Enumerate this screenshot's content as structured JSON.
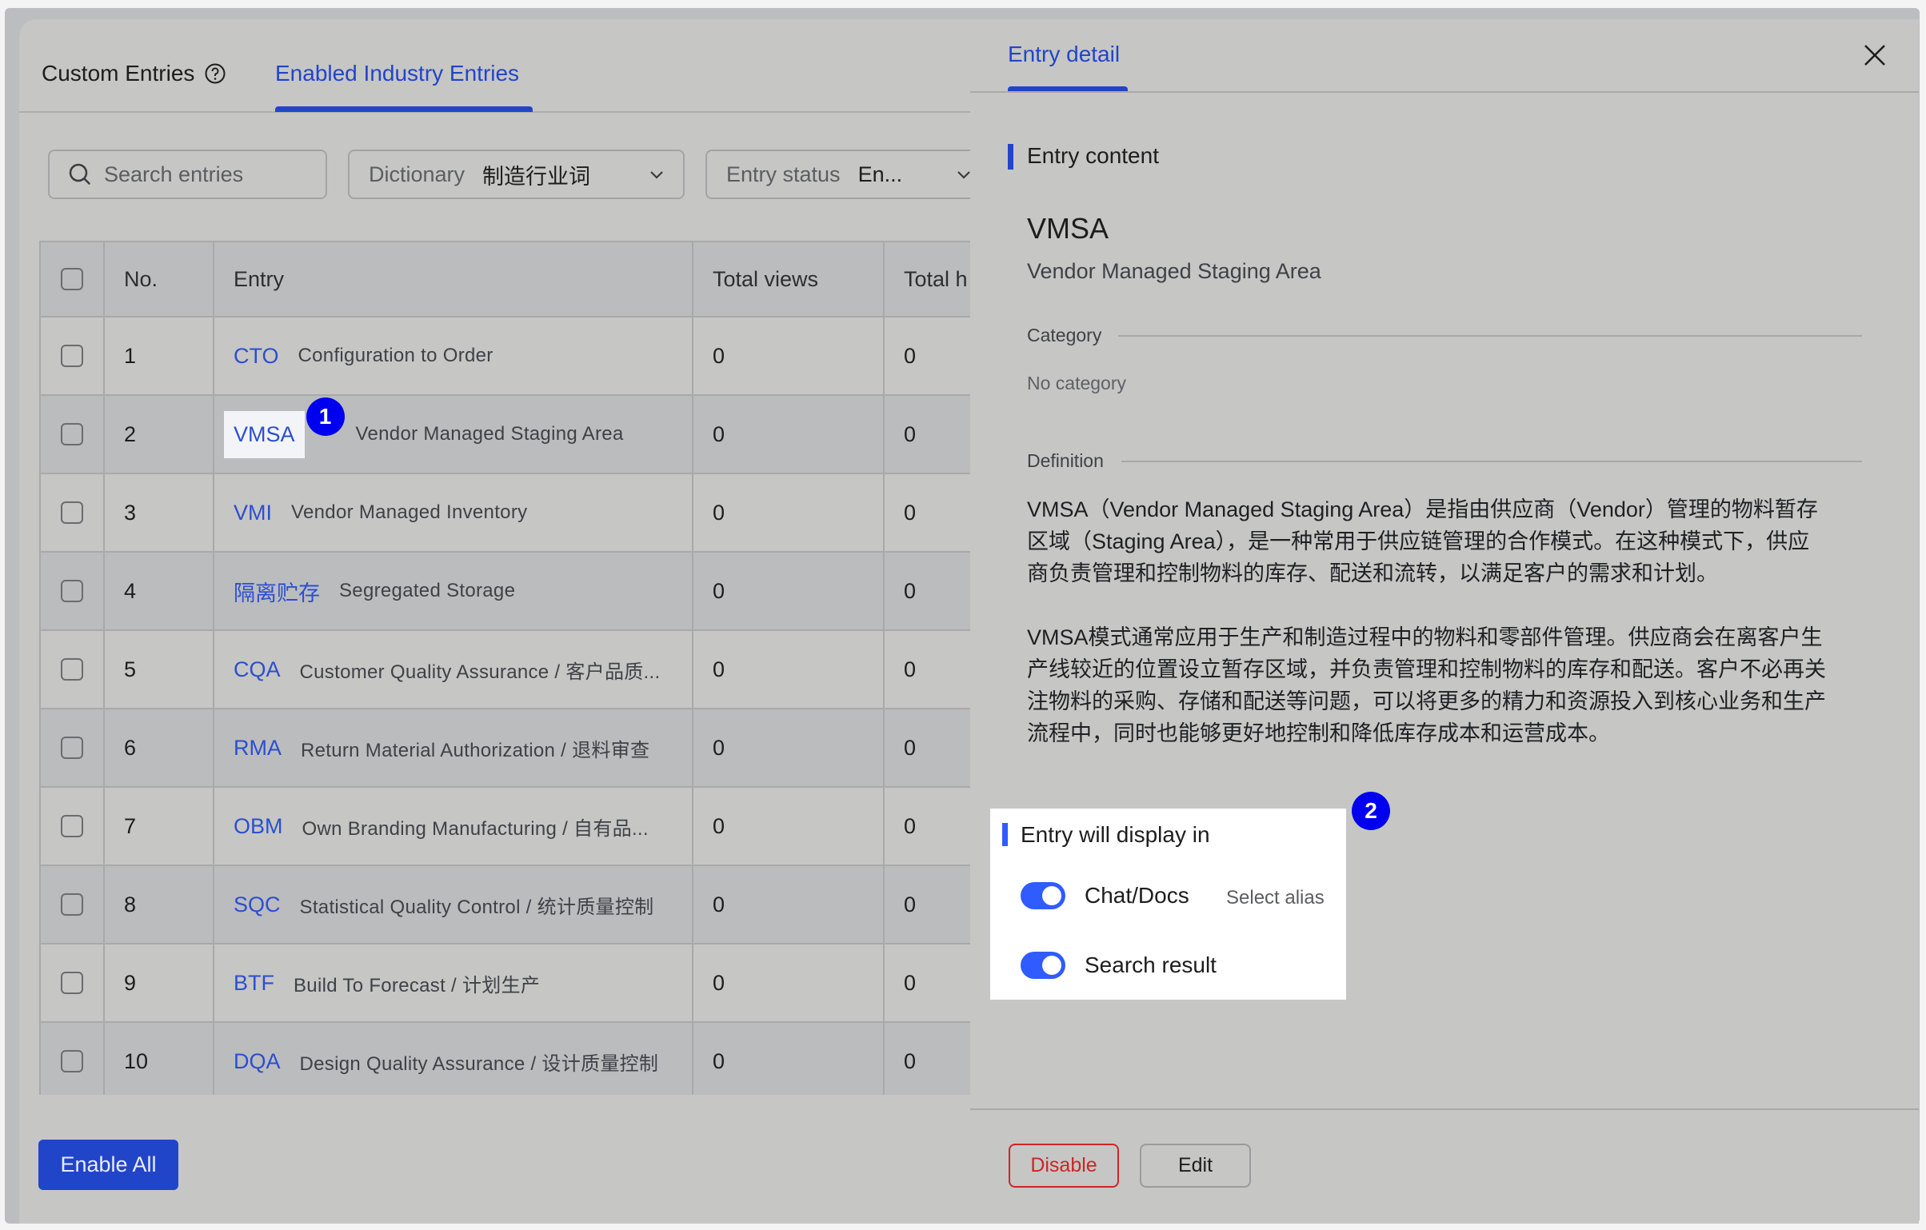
{
  "tabs": [
    {
      "label": "Custom Entries",
      "icon": "help-circle-icon",
      "active": false
    },
    {
      "label": "Enabled Industry Entries",
      "active": true
    }
  ],
  "filters": {
    "search_placeholder": "Search entries",
    "dictionary_label": "Dictionary",
    "dictionary_value": "制造行业词",
    "status_label": "Entry status",
    "status_value": "En..."
  },
  "table": {
    "headers": [
      "No.",
      "Entry",
      "Total views",
      "Total h"
    ],
    "rows": [
      {
        "no": "1",
        "term": "CTO",
        "desc": "Configuration to Order",
        "views": "0",
        "total": "0"
      },
      {
        "no": "2",
        "term": "VMSA",
        "desc": "Vendor Managed Staging Area",
        "views": "0",
        "total": "0"
      },
      {
        "no": "3",
        "term": "VMI",
        "desc": "Vendor Managed Inventory",
        "views": "0",
        "total": "0"
      },
      {
        "no": "4",
        "term": "隔离贮存",
        "desc": "Segregated Storage",
        "views": "0",
        "total": "0"
      },
      {
        "no": "5",
        "term": "CQA",
        "desc": "Customer Quality Assurance / 客户品质...",
        "views": "0",
        "total": "0"
      },
      {
        "no": "6",
        "term": "RMA",
        "desc": "Return Material Authorization / 退料审查",
        "views": "0",
        "total": "0"
      },
      {
        "no": "7",
        "term": "OBM",
        "desc": "Own Branding Manufacturing / 自有品...",
        "views": "0",
        "total": "0"
      },
      {
        "no": "8",
        "term": "SQC",
        "desc": "Statistical Quality Control / 统计质量控制",
        "views": "0",
        "total": "0"
      },
      {
        "no": "9",
        "term": "BTF",
        "desc": "Build To Forecast / 计划生产",
        "views": "0",
        "total": "0"
      },
      {
        "no": "10",
        "term": "DQA",
        "desc": "Design Quality Assurance / 设计质量控制",
        "views": "0",
        "total": "0"
      }
    ]
  },
  "enable_all_label": "Enable All",
  "annotations": {
    "badge1": "1",
    "badge2": "2"
  },
  "drawer": {
    "tab_label": "Entry detail",
    "section_title": "Entry content",
    "term": "VMSA",
    "full_name": "Vendor Managed Staging Area",
    "category_label": "Category",
    "category_value": "No category",
    "definition_label": "Definition",
    "definition_lines": [
      "VMSA（Vendor Managed Staging Area）是指由供应商（Vendor）管理的物料暂存",
      "区域（Staging Area），是一种常用于供应链管理的合作模式。在这种模式下，供应",
      "商负责管理和控制物料的库存、配送和流转，以满足客户的需求和计划。",
      "",
      "VMSA模式通常应用于生产和制造过程中的物料和零部件管理。供应商会在离客户生",
      "产线较近的位置设立暂存区域，并负责管理和控制物料的库存和配送。客户不必再关",
      "注物料的采购、存储和配送等问题，可以将更多的精力和资源投入到核心业务和生产",
      "流程中，同时也能够更好地控制和降低库存成本和运营成本。"
    ],
    "display_title": "Entry will display in",
    "chat_docs_label": "Chat/Docs",
    "chat_docs_on": true,
    "select_alias_label": "Select alias",
    "search_result_label": "Search result",
    "search_result_on": true,
    "disable_label": "Disable",
    "edit_label": "Edit"
  },
  "colors": {
    "accent": "#2145c9",
    "link": "#2b4fd0",
    "toggle": "#2f5bff",
    "danger": "#c62828",
    "badge": "#0000f0"
  }
}
